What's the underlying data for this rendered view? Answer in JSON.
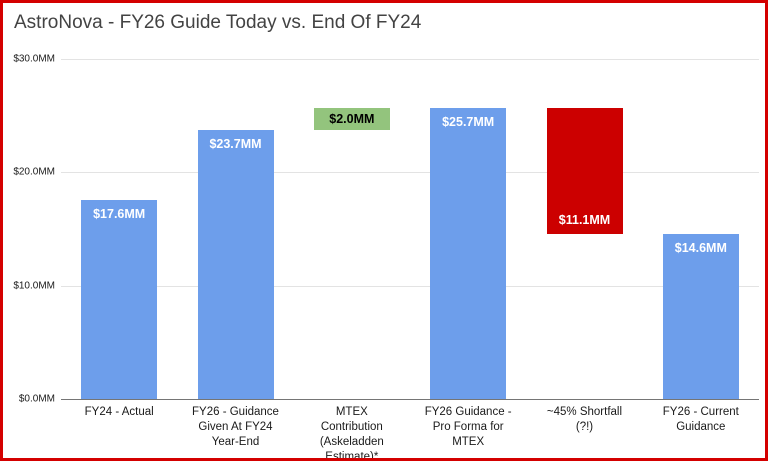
{
  "page": {
    "border_color": "#d40000",
    "background": "#ffffff"
  },
  "chart_data": {
    "type": "bar",
    "subtype": "floating-waterfall",
    "title": "AstroNova - FY26 Guide Today vs. End Of FY24",
    "xlabel": "",
    "ylabel": "",
    "ylim": [
      0,
      30
    ],
    "grid": true,
    "legend": "none",
    "y_ticks": [
      {
        "value": 0,
        "label": "$0.0MM"
      },
      {
        "value": 10,
        "label": "$10.0MM"
      },
      {
        "value": 20,
        "label": "$20.0MM"
      },
      {
        "value": 30,
        "label": "$30.0MM"
      }
    ],
    "bars": [
      {
        "category": "FY24 - Actual",
        "from": 0,
        "to": 17.6,
        "value_label": "$17.6MM",
        "color": "#6d9eeb",
        "label_color": "#ffffff",
        "label_pos": "inside-top"
      },
      {
        "category": "FY26 - Guidance\nGiven At FY24\nYear-End",
        "from": 0,
        "to": 23.7,
        "value_label": "$23.7MM",
        "color": "#6d9eeb",
        "label_color": "#ffffff",
        "label_pos": "inside-top"
      },
      {
        "category": "MTEX\nContribution\n(Askeladden\nEstimate)*",
        "from": 23.7,
        "to": 25.7,
        "value_label": "$2.0MM",
        "color": "#93c47d",
        "label_color": "#000000",
        "label_pos": "center"
      },
      {
        "category": "FY26 Guidance -\nPro Forma for\nMTEX",
        "from": 0,
        "to": 25.7,
        "value_label": "$25.7MM",
        "color": "#6d9eeb",
        "label_color": "#ffffff",
        "label_pos": "inside-top"
      },
      {
        "category": "~45% Shortfall\n(?!)",
        "from": 14.6,
        "to": 25.7,
        "value_label": "$11.1MM",
        "color": "#cc0000",
        "label_color": "#ffffff",
        "label_pos": "inside-bottom"
      },
      {
        "category": "FY26 - Current\nGuidance",
        "from": 0,
        "to": 14.6,
        "value_label": "$14.6MM",
        "color": "#6d9eeb",
        "label_color": "#ffffff",
        "label_pos": "inside-top"
      }
    ]
  }
}
